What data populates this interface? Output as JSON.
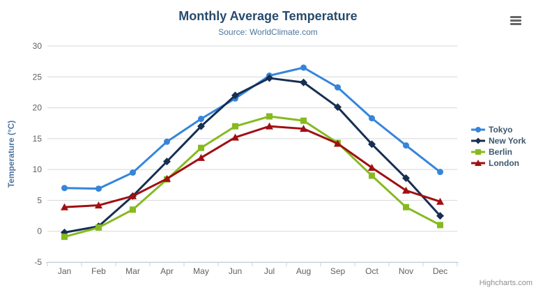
{
  "chart_data": {
    "type": "line",
    "title": "Monthly Average Temperature",
    "subtitle": "Source: WorldClimate.com",
    "xlabel": "",
    "ylabel": "Temperature (°C)",
    "ylim": [
      -5,
      30
    ],
    "yticks": [
      -5,
      0,
      5,
      10,
      15,
      20,
      25,
      30
    ],
    "grid": true,
    "legend_position": "right",
    "categories": [
      "Jan",
      "Feb",
      "Mar",
      "Apr",
      "May",
      "Jun",
      "Jul",
      "Aug",
      "Sep",
      "Oct",
      "Nov",
      "Dec"
    ],
    "series": [
      {
        "name": "Tokyo",
        "color": "#3585db",
        "marker": "circle",
        "values": [
          7.0,
          6.9,
          9.5,
          14.5,
          18.2,
          21.5,
          25.2,
          26.5,
          23.3,
          18.3,
          13.9,
          9.6
        ]
      },
      {
        "name": "New York",
        "color": "#162f52",
        "marker": "diamond",
        "values": [
          -0.2,
          0.8,
          5.7,
          11.3,
          17.0,
          22.0,
          24.8,
          24.1,
          20.1,
          14.1,
          8.6,
          2.5
        ]
      },
      {
        "name": "Berlin",
        "color": "#86ba1f",
        "marker": "square",
        "values": [
          -0.9,
          0.6,
          3.5,
          8.4,
          13.5,
          17.0,
          18.6,
          17.9,
          14.3,
          9.0,
          3.9,
          1.0
        ]
      },
      {
        "name": "London",
        "color": "#a00f12",
        "marker": "triangle",
        "values": [
          3.9,
          4.2,
          5.7,
          8.5,
          11.9,
          15.2,
          17.0,
          16.6,
          14.2,
          10.3,
          6.6,
          4.8
        ]
      }
    ],
    "colors": {
      "grid_line": "#d8d8d8",
      "axis_line": "#c0d0e0",
      "axis_label": "#606060",
      "title": "#274b6d",
      "subtitle": "#4d759e",
      "legend_text": "#3e576f"
    }
  },
  "export_menu": {
    "icon": "hamburger-menu-icon"
  },
  "credit": {
    "label": "Highcharts.com"
  }
}
